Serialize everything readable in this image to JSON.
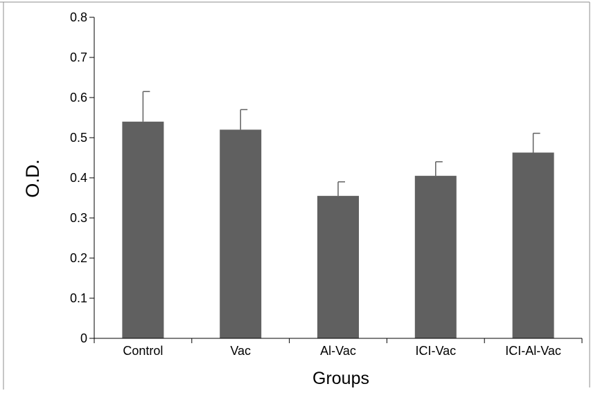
{
  "chart_data": {
    "type": "bar",
    "title": "",
    "xlabel": "Groups",
    "ylabel": "O.D.",
    "categories": [
      "Control",
      "Vac",
      "Al-Vac",
      "ICI-Vac",
      "ICI-Al-Vac"
    ],
    "values": [
      0.54,
      0.52,
      0.355,
      0.405,
      0.463
    ],
    "error_plus": [
      0.075,
      0.05,
      0.035,
      0.035,
      0.048
    ],
    "ylim": [
      0,
      0.8
    ],
    "yticks": [
      0,
      0.1,
      0.2,
      0.3,
      0.4,
      0.5,
      0.6,
      0.7,
      0.8
    ],
    "ytick_labels": [
      "0",
      "0.1",
      "0.2",
      "0.3",
      "0.4",
      "0.5",
      "0.6",
      "0.7",
      "0.8"
    ],
    "grid": false,
    "legend": "none",
    "colors": {
      "bar": "#606060",
      "axis": "#000000",
      "frame": "#8c8c8c"
    }
  }
}
